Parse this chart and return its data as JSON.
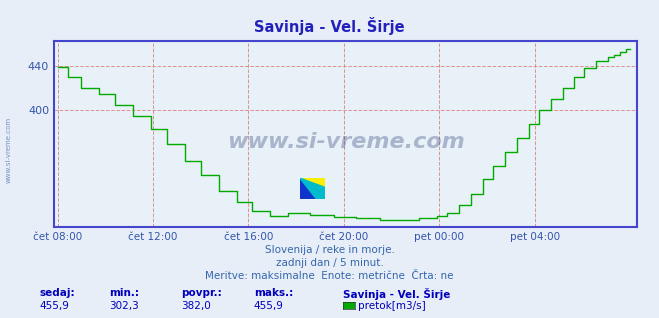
{
  "title": "Savinja - Vel. Širje",
  "title_color": "#2222bb",
  "bg_color": "#e8eef8",
  "plot_bg_color": "#e8f0f8",
  "line_color": "#00aa00",
  "line_width": 1.0,
  "axis_color": "#4444cc",
  "grid_color": "#dd8888",
  "grid_style": "--",
  "grid_alpha": 0.9,
  "ytick_color": "#3355aa",
  "xtick_color": "#3355aa",
  "ymin": 295,
  "ymax": 462,
  "yticks": [
    400,
    440
  ],
  "ytick_labels": [
    "400",
    "440"
  ],
  "xtick_positions": [
    0,
    4,
    8,
    12,
    16,
    20
  ],
  "xtick_labels": [
    "čet 08:00",
    "čet 12:00",
    "čet 16:00",
    "čet 20:00",
    "pet 00:00",
    "pet 04:00"
  ],
  "footer_line1": "Slovenija / reke in morje.",
  "footer_line2": "zadnji dan / 5 minut.",
  "footer_line3": "Meritve: maksimalne  Enote: metrične  Črta: ne",
  "footer_color": "#3366aa",
  "stats_labels": [
    "sedaj:",
    "min.:",
    "povpr.:",
    "maks.:"
  ],
  "stats_values": [
    "455,9",
    "302,3",
    "382,0",
    "455,9"
  ],
  "stats_bold_color": "#0000bb",
  "stats_value_color": "#0000bb",
  "legend_title": "Savinja - Vel. Širje",
  "legend_sub": "pretok[m3/s]",
  "legend_color": "#00aa00",
  "watermark_text": "www.si-vreme.com",
  "watermark_color": "#1a2a6a",
  "watermark_alpha": 0.3,
  "side_text": "www.si-vreme.com",
  "side_color": "#4466aa",
  "side_alpha": 0.7
}
